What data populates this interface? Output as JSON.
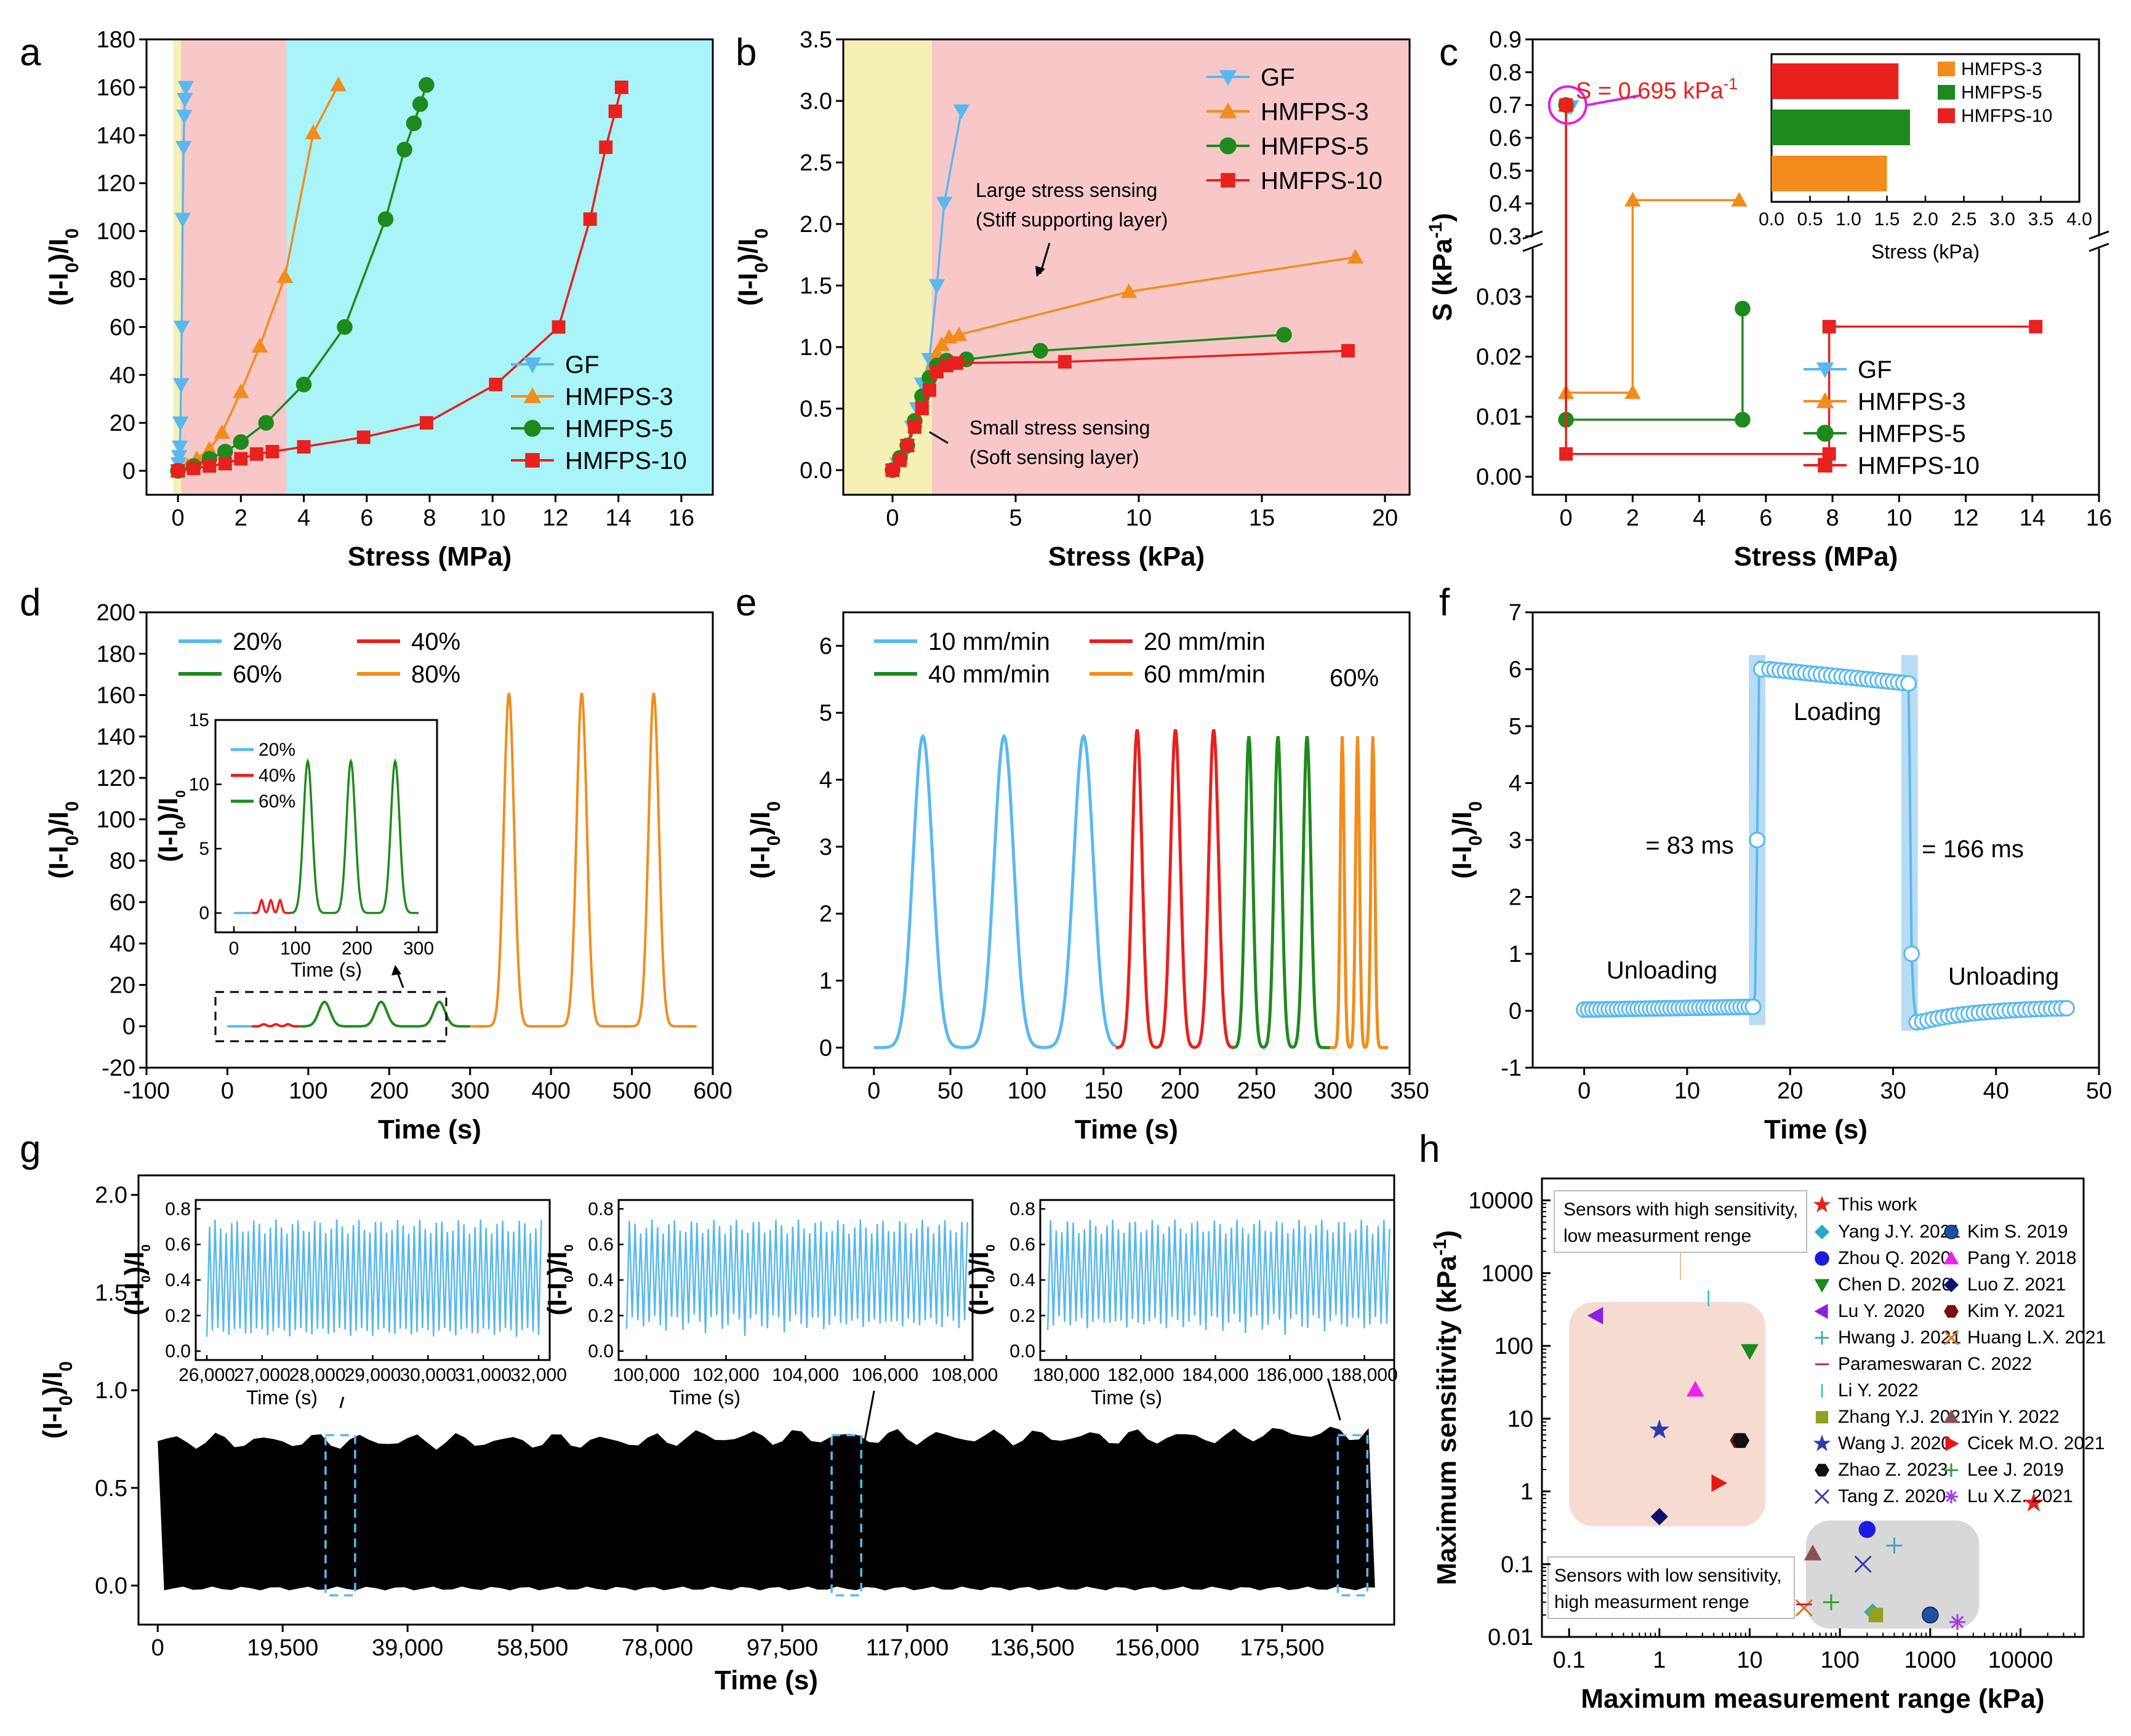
{
  "figure": {
    "panel_letters": [
      "a",
      "b",
      "c",
      "d",
      "e",
      "f",
      "g",
      "h"
    ]
  },
  "colors": {
    "GF": "#5ab8f0",
    "HMFPS-3": "#f28c1c",
    "HMFPS-5": "#1e8a1e",
    "HMFPS-10": "#e8201e",
    "c20": "#5ab8f0",
    "c40": "#e8201e",
    "c60": "#1e8a1e",
    "c80": "#f28c1c",
    "bg_yellow": "#f5f0b4",
    "bg_pink": "#f8c8c8",
    "bg_cyan": "#a8f4f8",
    "bg_shade": "#f6dcd0",
    "bg_grey": "#d8d8d8"
  },
  "chart_data": [
    {
      "id": "a",
      "type": "line",
      "xlabel": "Stress (MPa)",
      "ylabel": "(I-I0)/I0",
      "xlim": [
        -1,
        17
      ],
      "ylim": [
        -10,
        180
      ],
      "xticks": [
        0,
        2,
        4,
        6,
        8,
        10,
        12,
        14,
        16
      ],
      "yticks": [
        0,
        20,
        40,
        60,
        80,
        100,
        120,
        140,
        160,
        180
      ],
      "regions": [
        {
          "from": -0.15,
          "to": 0.1,
          "color": "bg_yellow"
        },
        {
          "from": 0.1,
          "to": 3.45,
          "color": "bg_pink"
        },
        {
          "from": 3.45,
          "to": 17,
          "color": "bg_cyan"
        }
      ],
      "legend_pos": "bottom-right",
      "series": [
        {
          "name": "GF",
          "marker": "tri-down",
          "x": [
            0,
            0.02,
            0.04,
            0.06,
            0.08,
            0.1,
            0.12,
            0.15,
            0.18,
            0.2,
            0.22,
            0.25
          ],
          "y": [
            0,
            3,
            6,
            10,
            20,
            36,
            60,
            105,
            135,
            148,
            155,
            160
          ]
        },
        {
          "name": "HMFPS-3",
          "marker": "tri-up",
          "x": [
            0,
            0.3,
            0.6,
            1,
            1.4,
            2,
            2.6,
            3.4,
            4.3,
            5.1
          ],
          "y": [
            0,
            2,
            5,
            9,
            16,
            33,
            52,
            81,
            141,
            161
          ]
        },
        {
          "name": "HMFPS-5",
          "marker": "circle",
          "x": [
            0,
            0.5,
            1,
            1.5,
            2,
            2.8,
            4,
            5.3,
            6.6,
            7.2,
            7.5,
            7.7,
            7.9
          ],
          "y": [
            0,
            2,
            5,
            8,
            12,
            20,
            36,
            60,
            105,
            134,
            145,
            153,
            161
          ]
        },
        {
          "name": "HMFPS-10",
          "marker": "square",
          "x": [
            0,
            0.5,
            1,
            1.5,
            2,
            2.5,
            3,
            4,
            5.9,
            7.9,
            10.1,
            12.1,
            13.1,
            13.6,
            13.9,
            14.1
          ],
          "y": [
            0,
            1,
            2,
            3,
            5,
            7,
            8,
            10,
            14,
            20,
            36,
            60,
            105,
            135,
            150,
            160
          ]
        }
      ]
    },
    {
      "id": "b",
      "type": "line",
      "xlabel": "Stress (kPa)",
      "ylabel": "(I-I0)/I0",
      "xlim": [
        -2,
        21
      ],
      "ylim": [
        -0.2,
        3.5
      ],
      "xticks": [
        0,
        5,
        10,
        15,
        20
      ],
      "yticks": [
        0.0,
        0.5,
        1.0,
        1.5,
        2.0,
        2.5,
        3.0,
        3.5
      ],
      "regions": [
        {
          "from": -2,
          "to": 1.6,
          "color": "bg_yellow"
        },
        {
          "from": 1.6,
          "to": 21,
          "color": "bg_pink"
        }
      ],
      "legend_pos": "top-right",
      "annotations": [
        {
          "text": "Large stress sensing",
          "line": 1
        },
        {
          "text": "(Stiff supporting layer)",
          "line": 2
        },
        {
          "text": "Small stress sensing",
          "line": 1
        },
        {
          "text": "(Soft sensing layer)",
          "line": 2
        }
      ],
      "series": [
        {
          "name": "GF",
          "marker": "tri-down",
          "x": [
            0,
            0.2,
            0.4,
            0.6,
            0.8,
            1.0,
            1.2,
            1.5,
            1.8,
            2.1,
            2.8
          ],
          "y": [
            0,
            0.05,
            0.1,
            0.2,
            0.35,
            0.5,
            0.7,
            0.9,
            1.5,
            2.17,
            2.92
          ]
        },
        {
          "name": "HMFPS-3",
          "marker": "tri-up",
          "x": [
            0,
            0.3,
            0.6,
            0.9,
            1.2,
            1.5,
            1.8,
            2.0,
            2.3,
            2.7,
            9.6,
            18.8
          ],
          "y": [
            0,
            0.1,
            0.2,
            0.4,
            0.6,
            0.8,
            0.95,
            1.02,
            1.08,
            1.1,
            1.45,
            1.73
          ]
        },
        {
          "name": "HMFPS-5",
          "marker": "circle",
          "x": [
            0,
            0.3,
            0.6,
            0.9,
            1.2,
            1.5,
            1.8,
            2.2,
            3.0,
            6.0,
            15.9
          ],
          "y": [
            0,
            0.1,
            0.2,
            0.4,
            0.6,
            0.75,
            0.85,
            0.89,
            0.9,
            0.97,
            1.1
          ]
        },
        {
          "name": "HMFPS-10",
          "marker": "square",
          "x": [
            0,
            0.3,
            0.6,
            0.9,
            1.2,
            1.5,
            1.8,
            2.2,
            2.6,
            7.0,
            18.5
          ],
          "y": [
            0,
            0.08,
            0.2,
            0.35,
            0.5,
            0.65,
            0.8,
            0.85,
            0.87,
            0.88,
            0.97
          ]
        }
      ]
    },
    {
      "id": "c",
      "type": "line",
      "xlabel": "Stress (MPa)",
      "ylabel": "S (kPa-1)",
      "xlim": [
        -1,
        16
      ],
      "ylim_lower": [
        -0.003,
        0.038
      ],
      "ylim_upper": [
        0.3,
        0.9
      ],
      "xticks": [
        0,
        2,
        4,
        6,
        8,
        10,
        12,
        14,
        16
      ],
      "yticks_lower": [
        0.0,
        0.01,
        0.02,
        0.03
      ],
      "yticks_upper": [
        0.3,
        0.4,
        0.5,
        0.6,
        0.7,
        0.8,
        0.9
      ],
      "legend_pos": "bottom-right",
      "annotation": "S = 0.695 kPa-1",
      "series": [
        {
          "name": "GF",
          "marker": "tri-down",
          "x": [
            0,
            0.05,
            0.1,
            0.15
          ],
          "y": [
            0.695,
            0.695,
            0.695,
            0.695
          ]
        },
        {
          "name": "HMFPS-3",
          "marker": "tri-up",
          "x": [
            0,
            0,
            2,
            2,
            5.2
          ],
          "y": [
            0.7,
            0.014,
            0.014,
            0.41,
            0.41
          ]
        },
        {
          "name": "HMFPS-5",
          "marker": "circle",
          "x": [
            0,
            0,
            5.3,
            5.3
          ],
          "y": [
            0.7,
            0.0095,
            0.0095,
            0.028
          ]
        },
        {
          "name": "HMFPS-10",
          "marker": "square",
          "x": [
            0,
            0,
            7.9,
            7.9,
            14.1
          ],
          "y": [
            0.7,
            0.0038,
            0.0038,
            0.025,
            0.025
          ]
        }
      ],
      "inset": {
        "type": "bar",
        "xlabel": "Stress (kPa)",
        "xlim": [
          0,
          4.0
        ],
        "xticks": [
          0.0,
          0.5,
          1.0,
          1.5,
          2.0,
          2.5,
          3.0,
          3.5,
          4.0
        ],
        "categories": [
          "HMFPS-10",
          "HMFPS-5",
          "HMFPS-3"
        ],
        "values": [
          1.65,
          1.8,
          1.5
        ],
        "legend": [
          "HMFPS-3",
          "HMFPS-5",
          "HMFPS-10"
        ]
      }
    },
    {
      "id": "d",
      "type": "line",
      "xlabel": "Time (s)",
      "ylabel": "(I-I0)/I0",
      "xlim": [
        -100,
        600
      ],
      "ylim": [
        -20,
        200
      ],
      "xticks": [
        -100,
        0,
        100,
        200,
        300,
        400,
        500,
        600
      ],
      "yticks": [
        -20,
        0,
        20,
        40,
        60,
        80,
        100,
        120,
        140,
        160,
        180,
        200
      ],
      "legend": [
        "20%",
        "40%",
        "60%",
        "80%"
      ],
      "series": [
        {
          "name": "20%",
          "peak_times": [],
          "peak_height": 0.3,
          "range": [
            0,
            30
          ]
        },
        {
          "name": "40%",
          "peak_times": [
            45,
            60,
            75
          ],
          "peak_height": 1.0,
          "range": [
            30,
            90
          ]
        },
        {
          "name": "60%",
          "peak_times": [
            120,
            190,
            262
          ],
          "peak_height": 11.8,
          "range": [
            90,
            300
          ]
        },
        {
          "name": "80%",
          "peak_times": [
            348,
            438,
            527
          ],
          "peak_height": 161,
          "range": [
            300,
            580
          ]
        }
      ],
      "inset": {
        "xlabel": "Time (s)",
        "ylabel": "(I-I0)/I0",
        "xticks": [
          0,
          100,
          200,
          300
        ],
        "yticks": [
          0,
          5,
          10,
          15
        ],
        "legend": [
          "20%",
          "40%",
          "60%"
        ]
      }
    },
    {
      "id": "e",
      "type": "line",
      "xlabel": "Time (s)",
      "ylabel": "(I-I0)/I0",
      "xlim": [
        -20,
        350
      ],
      "ylim": [
        -0.3,
        6.5
      ],
      "xticks": [
        0,
        50,
        100,
        150,
        200,
        250,
        300,
        350
      ],
      "yticks": [
        0,
        1,
        2,
        3,
        4,
        5,
        6
      ],
      "legend": [
        "10 mm/min",
        "20 mm/min",
        "40 mm/min",
        "60 mm/min"
      ],
      "label_strain": "60%",
      "series": [
        {
          "name": "10 mm/min",
          "peak_times": [
            32,
            85,
            137
          ],
          "peak_height": 4.65,
          "range": [
            0,
            158
          ]
        },
        {
          "name": "20 mm/min",
          "peak_times": [
            172,
            197,
            222
          ],
          "peak_height": 4.75,
          "range": [
            158,
            235
          ]
        },
        {
          "name": "40 mm/min",
          "peak_times": [
            245,
            264,
            283
          ],
          "peak_height": 4.65,
          "range": [
            235,
            298
          ]
        },
        {
          "name": "60 mm/min",
          "peak_times": [
            306,
            316,
            326
          ],
          "peak_height": 4.65,
          "range": [
            298,
            336
          ]
        }
      ]
    },
    {
      "id": "f",
      "type": "line",
      "xlabel": "Time (s)",
      "ylabel": "(I-I0)/I0",
      "xlim": [
        -5,
        50
      ],
      "ylim": [
        -1,
        7
      ],
      "xticks": [
        0,
        10,
        20,
        30,
        40,
        50
      ],
      "yticks": [
        -1,
        0,
        1,
        2,
        3,
        4,
        5,
        6,
        7
      ],
      "labels": [
        "Loading",
        "Unloading",
        "Unloading",
        "= 83 ms",
        "= 166 ms"
      ],
      "rise_time": 16.7,
      "fall_time": 31.5,
      "plateau": [
        6.0,
        5.75
      ]
    },
    {
      "id": "g",
      "type": "line",
      "xlabel": "Time (s)",
      "ylabel": "(I-I0)/I0",
      "xlim": [
        -3000,
        193000
      ],
      "ylim": [
        -0.2,
        2.1
      ],
      "xticks": [
        0,
        19500,
        39000,
        58500,
        78000,
        97500,
        117000,
        136500,
        156000,
        175500
      ],
      "xtick_labels": [
        "0",
        "19,500",
        "39,000",
        "58,500",
        "78,000",
        "97,500",
        "117,000",
        "136,500",
        "156,000",
        "175,500"
      ],
      "yticks": [
        0.0,
        0.5,
        1.0,
        1.5,
        2.0
      ],
      "band": [
        0.0,
        0.74
      ],
      "insets": [
        {
          "xlabel": "Time (s)",
          "ylabel": "(I-I0)/I0",
          "xticks": [
            "26,000",
            "27,000",
            "28,000",
            "29,000",
            "30,000",
            "31,000",
            "32,000"
          ],
          "yticks": [
            "0.0",
            "0.2",
            "0.4",
            "0.6",
            "0.8"
          ]
        },
        {
          "xlabel": "Time (s)",
          "ylabel": "(I-I0)/I0",
          "xticks": [
            "100,000",
            "102,000",
            "104,000",
            "106,000",
            "108,000"
          ],
          "yticks": [
            "0.0",
            "0.2",
            "0.4",
            "0.6",
            "0.8"
          ]
        },
        {
          "xlabel": "Time (s)",
          "ylabel": "(I-I0)/I0",
          "xticks": [
            "180,000",
            "182,000",
            "184,000",
            "186,000",
            "188,000"
          ],
          "yticks": [
            "0.0",
            "0.2",
            "0.4",
            "0.6",
            "0.8"
          ]
        }
      ]
    },
    {
      "id": "h",
      "type": "scatter",
      "xscale": "log",
      "yscale": "log",
      "xlabel": "Maximum measurement range (kPa)",
      "ylabel": "Maximum sensitivity (kPa-1)",
      "xticks": [
        0.1,
        1,
        10,
        100,
        1000,
        10000
      ],
      "xtick_labels": [
        "0.1",
        "1",
        "10",
        "100",
        "1000",
        "10000"
      ],
      "yticks": [
        0.01,
        0.1,
        1,
        10,
        100,
        1000,
        10000
      ],
      "ytick_labels": [
        "0.01",
        "0.1",
        "1",
        "10",
        "100",
        "1000",
        "10000"
      ],
      "zones": [
        {
          "text_1": "Sensors with high sensitivity,",
          "text_2": "low measurment renge"
        },
        {
          "text_1": "Sensors with low sensitivity,",
          "text_2": "high measurment renge"
        }
      ],
      "points": [
        {
          "name": "This work",
          "x": 14000,
          "y": 0.695,
          "color": "#e8201e",
          "marker": "star"
        },
        {
          "name": "Yang J.Y. 2021",
          "x": 230,
          "y": 0.022,
          "color": "#2aa8c8",
          "marker": "diamond"
        },
        {
          "name": "Kim S. 2019",
          "x": 1000,
          "y": 0.02,
          "color": "#2050a0",
          "marker": "sphere"
        },
        {
          "name": "Zhou Q. 2020",
          "x": 200,
          "y": 0.3,
          "color": "#1a1ae0",
          "marker": "circle"
        },
        {
          "name": "Pang Y. 2018",
          "x": 2.5,
          "y": 25,
          "color": "#f020f0",
          "marker": "tri-up"
        },
        {
          "name": "Chen D. 2020",
          "x": 10,
          "y": 85,
          "color": "#1a8a1a",
          "marker": "tri-down"
        },
        {
          "name": "Luo Z. 2021",
          "x": 1.0,
          "y": 0.45,
          "color": "#101070",
          "marker": "diamond"
        },
        {
          "name": "Lu Y. 2020",
          "x": 0.2,
          "y": 260,
          "color": "#8a20e0",
          "marker": "tri-left"
        },
        {
          "name": "Kim Y. 2021",
          "x": 7.5,
          "y": 5,
          "color": "#7a1010",
          "marker": "hexagon"
        },
        {
          "name": "Hwang J. 2021",
          "x": 400,
          "y": 0.18,
          "color": "#40a8b8",
          "marker": "plus"
        },
        {
          "name": "Huang L.X. 2021",
          "x": 40,
          "y": 0.025,
          "color": "#e07020",
          "marker": "x"
        },
        {
          "name": "Parameswaran C. 2022",
          "x": 40,
          "y": 0.028,
          "color": "#c02050",
          "marker": "dash"
        },
        {
          "name": "Li Y. 2022",
          "x": 3.5,
          "y": 450,
          "color": "#40c8c8",
          "marker": "vbar"
        },
        {
          "name": "Zhang Y.J. 2021",
          "x": 250,
          "y": 0.02,
          "color": "#90a020",
          "marker": "square"
        },
        {
          "name": "Yin Y. 2022",
          "x": 50,
          "y": 0.14,
          "color": "#8a5050",
          "marker": "tri-up"
        },
        {
          "name": "Wang J. 2020",
          "x": 1.0,
          "y": 7,
          "color": "#2a3ab0",
          "marker": "star"
        },
        {
          "name": "Cicek M.O. 2021",
          "x": 4.5,
          "y": 1.3,
          "color": "#e81818",
          "marker": "tri-right"
        },
        {
          "name": "Zhao Z. 2023",
          "x": 8,
          "y": 5,
          "color": "#101010",
          "marker": "hexagon"
        },
        {
          "name": "Lee J. 2019",
          "x": 80,
          "y": 0.03,
          "color": "#30a030",
          "marker": "plus"
        },
        {
          "name": "Tang Z. 2020",
          "x": 180,
          "y": 0.1,
          "color": "#3a3ab0",
          "marker": "x"
        },
        {
          "name": "Lu X.Z. 2021",
          "x": 2000,
          "y": 0.016,
          "color": "#a040e0",
          "marker": "asterisk"
        }
      ]
    }
  ]
}
